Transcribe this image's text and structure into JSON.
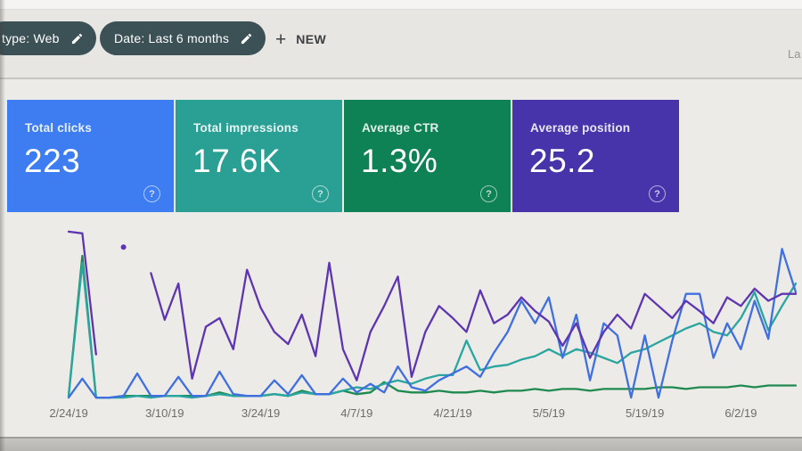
{
  "window": {
    "top_right_text": "La"
  },
  "toolbar": {
    "chips": [
      {
        "label": "type: Web",
        "icon": "pencil-icon"
      },
      {
        "label": "Date: Last 6 months",
        "icon": "pencil-icon"
      }
    ],
    "new_button": {
      "plus": "+",
      "label": "NEW"
    }
  },
  "icons": {
    "help": "?"
  },
  "colors": {
    "chip_bg": "#3c5156",
    "toolbar_text": "#3c4043",
    "axis_label": "#6d6c6a"
  },
  "cards": [
    {
      "label": "Total clicks",
      "value": "223",
      "bg": "#3d7df1"
    },
    {
      "label": "Total impressions",
      "value": "17.6K",
      "bg": "#2aa095"
    },
    {
      "label": "Average CTR",
      "value": "1.3%",
      "bg": "#0e8155"
    },
    {
      "label": "Average position",
      "value": "25.2",
      "bg": "#4834aa"
    }
  ],
  "chart_data": {
    "type": "line",
    "x_start": "2/24/19",
    "x_step_days": 2,
    "x_tick_labels": [
      "2/24/19",
      "3/10/19",
      "3/24/19",
      "4/7/19",
      "4/21/19",
      "5/5/19",
      "5/19/19",
      "6/2/19"
    ],
    "tick_indices": [
      0,
      7,
      14,
      21,
      28,
      35,
      42,
      49
    ],
    "legend_position": "none (metric cards act as legend)",
    "grid": false,
    "note": "No y-axis is shown in the UI; values are percent of plot height per series' own hidden scale. null = gap in line.",
    "series": [
      {
        "name": "Clicks",
        "color": "#3f6fe0",
        "values": [
          2,
          13,
          2,
          2,
          3,
          16,
          3,
          3,
          14,
          3,
          3,
          17,
          4,
          3,
          3,
          12,
          4,
          15,
          4,
          4,
          13,
          5,
          10,
          5,
          20,
          8,
          6,
          12,
          16,
          20,
          14,
          28,
          40,
          58,
          45,
          60,
          25,
          50,
          12,
          45,
          38,
          2,
          38,
          2,
          35,
          62,
          62,
          25,
          45,
          30,
          58,
          36,
          88,
          63
        ]
      },
      {
        "name": "Impressions",
        "color": "#2aa5a0",
        "values": [
          3,
          80,
          2,
          2,
          2,
          3,
          2,
          3,
          3,
          2,
          3,
          4,
          3,
          3,
          3,
          4,
          3,
          5,
          4,
          4,
          6,
          8,
          7,
          10,
          12,
          10,
          13,
          15,
          15,
          35,
          18,
          20,
          21,
          24,
          26,
          30,
          26,
          30,
          28,
          25,
          22,
          28,
          30,
          34,
          38,
          42,
          45,
          40,
          38,
          48,
          63,
          41,
          55,
          68
        ]
      },
      {
        "name": "CTR",
        "color": "#1f8a50",
        "values": [
          3,
          84,
          2,
          2,
          3,
          3,
          3,
          3,
          3,
          3,
          3,
          5,
          3,
          3,
          3,
          4,
          3,
          6,
          4,
          4,
          6,
          4,
          5,
          11,
          6,
          5,
          5,
          6,
          5,
          5,
          6,
          5,
          6,
          6,
          7,
          6,
          7,
          7,
          6,
          7,
          7,
          7,
          7,
          8,
          8,
          7,
          8,
          8,
          8,
          9,
          8,
          9,
          9,
          9
        ]
      },
      {
        "name": "Position",
        "color": "#5e35b1",
        "values": [
          98,
          97,
          27,
          null,
          89,
          null,
          74,
          47,
          68,
          13,
          43,
          48,
          30,
          76,
          54,
          40,
          33,
          50,
          26,
          80,
          30,
          12,
          40,
          55,
          72,
          14,
          40,
          55,
          48,
          40,
          64,
          45,
          50,
          60,
          52,
          46,
          32,
          45,
          25,
          40,
          50,
          42,
          62,
          55,
          48,
          58,
          52,
          45,
          60,
          55,
          65,
          58,
          62,
          62
        ]
      }
    ]
  }
}
